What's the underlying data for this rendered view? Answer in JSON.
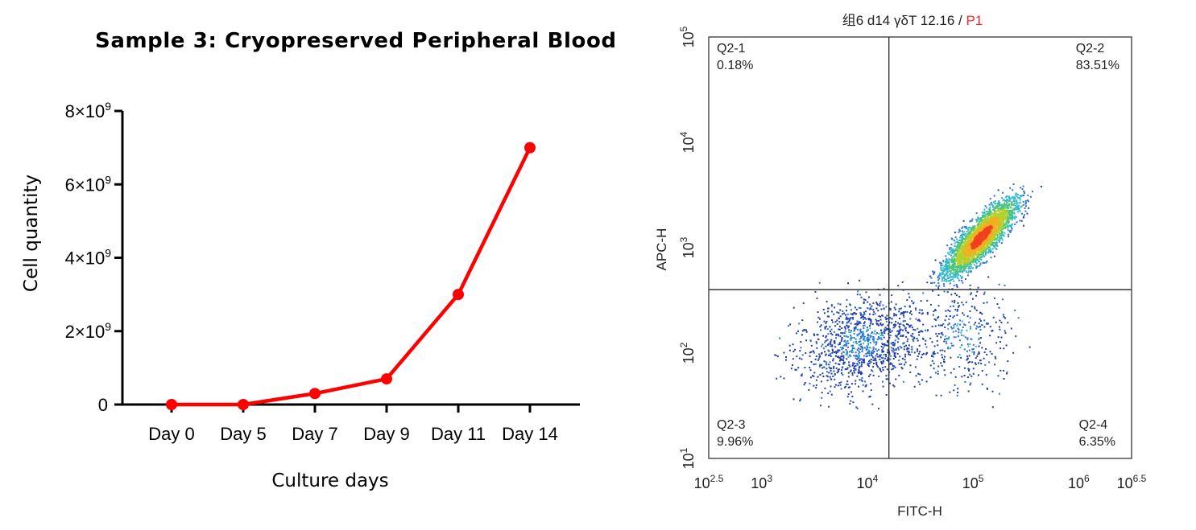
{
  "chart_data": [
    {
      "type": "line",
      "title": "Sample 3: Cryopreserved Peripheral Blood",
      "xlabel": "Culture days",
      "ylabel": "Cell quantity",
      "categories": [
        "Day 0",
        "Day 5",
        "Day 7",
        "Day 9",
        "Day 11",
        "Day 14"
      ],
      "values": [
        0,
        0,
        300000000,
        700000000,
        3000000000,
        7000000000
      ],
      "ylim": [
        0,
        8000000000
      ],
      "yticks": [
        {
          "value": 0,
          "base": "0",
          "exp": ""
        },
        {
          "value": 2000000000,
          "base": "2×10",
          "exp": "9"
        },
        {
          "value": 4000000000,
          "base": "4×10",
          "exp": "9"
        },
        {
          "value": 6000000000,
          "base": "6×10",
          "exp": "9"
        },
        {
          "value": 8000000000,
          "base": "8×10",
          "exp": "9"
        }
      ],
      "color": "#ff0000",
      "grid": false
    },
    {
      "type": "scatter",
      "title_main": "组6 d14 γδT 12.16 / ",
      "title_gate": "P1",
      "title_gate_color": "#ff2a2a",
      "xlabel": "FITC-H",
      "ylabel": "APC-H",
      "xscale": "log",
      "yscale": "log",
      "xlim": [
        316,
        3162278
      ],
      "ylim": [
        10,
        100000
      ],
      "xticks": [
        {
          "value": 316,
          "base": "10",
          "exp": "2.5"
        },
        {
          "value": 1000,
          "base": "10",
          "exp": "3"
        },
        {
          "value": 10000,
          "base": "10",
          "exp": "4"
        },
        {
          "value": 100000,
          "base": "10",
          "exp": "5"
        },
        {
          "value": 1000000,
          "base": "10",
          "exp": "6"
        },
        {
          "value": 3162278,
          "base": "10",
          "exp": "6.5"
        }
      ],
      "yticks": [
        {
          "value": 10,
          "base": "10",
          "exp": "1"
        },
        {
          "value": 100,
          "base": "10",
          "exp": "2"
        },
        {
          "value": 1000,
          "base": "10",
          "exp": "3"
        },
        {
          "value": 10000,
          "base": "10",
          "exp": "4"
        },
        {
          "value": 100000,
          "base": "10",
          "exp": "5"
        }
      ],
      "gate": {
        "x": 16000,
        "y": 400
      },
      "quadrants": [
        {
          "name": "Q2-1",
          "percent": "0.18%",
          "corner": "top-left"
        },
        {
          "name": "Q2-2",
          "percent": "83.51%",
          "corner": "top-right"
        },
        {
          "name": "Q2-3",
          "percent": "9.96%",
          "corner": "bottom-left"
        },
        {
          "name": "Q2-4",
          "percent": "6.35%",
          "corner": "bottom-right"
        }
      ],
      "populations": [
        {
          "name": "main",
          "count": 3000,
          "center_log_x": 5.08,
          "center_log_y": 3.1,
          "spread_major": 0.33,
          "spread_minor": 0.1,
          "angle_deg": 48
        },
        {
          "name": "low",
          "count": 1100,
          "center_log_x": 3.95,
          "center_log_y": 2.1,
          "spread_major": 0.42,
          "spread_minor": 0.3,
          "angle_deg": 20
        },
        {
          "name": "scatter",
          "count": 350,
          "center_log_x": 4.9,
          "center_log_y": 2.15,
          "spread_major": 0.35,
          "spread_minor": 0.35,
          "angle_deg": 0
        }
      ],
      "density_colors": [
        "#1f3fa8",
        "#2f6fd4",
        "#2fb7d0",
        "#4cc47a",
        "#b6d12e",
        "#f0b020",
        "#f04020"
      ]
    }
  ]
}
